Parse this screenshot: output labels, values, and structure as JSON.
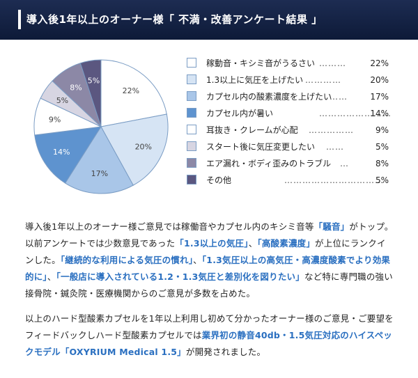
{
  "header": {
    "title": "導入後1年以上のオーナー様「 不満・改善アンケート結果 」"
  },
  "chart_data": {
    "type": "pie",
    "categories": [
      "稼動音・キシミ音がうるさい",
      "1.3以上に気圧を上げたい",
      "カプセル内の酸素濃度を上げたい",
      "カプセル内が暑い",
      "耳抜き・クレームが心配",
      "スタート後に気圧変更したい",
      "エア漏れ・ボディ歪みのトラブル",
      "その他"
    ],
    "values": [
      22,
      20,
      17,
      14,
      9,
      5,
      8,
      5
    ],
    "slice_labels": [
      "22%",
      "20%",
      "17%",
      "14%",
      "9%",
      "5%",
      "8%",
      "5%"
    ],
    "legend_values": [
      "22%",
      "20%",
      "17%",
      "14%",
      "9%",
      "5%",
      "8%",
      "5%"
    ],
    "colors": [
      "#ffffff",
      "#d6e4f4",
      "#a9c6e8",
      "#5e93cf",
      "#ffffff",
      "#d7d5e2",
      "#8c88a6",
      "#5b5780"
    ],
    "legend_placement": "right"
  },
  "legend_dots": [
    "………",
    "…………",
    "……",
    "……………………",
    "……………",
    "……",
    "…",
    "……………………………"
  ],
  "body": {
    "p1": [
      {
        "t": "導入後1年以上のオーナー様ご意見では稼働音やカプセル内のキシミ音等",
        "h": false
      },
      {
        "t": "「騒音」",
        "h": true
      },
      {
        "t": "がトップ。以前アンケートでは少数意見であった",
        "h": false
      },
      {
        "t": "「1.3以上の気圧」",
        "h": true
      },
      {
        "t": "、",
        "h": false
      },
      {
        "t": "「高酸素濃度」",
        "h": true
      },
      {
        "t": "が上位にランクインした。",
        "h": false
      },
      {
        "t": "「継続的な利用による気圧の慣れ」",
        "h": true
      },
      {
        "t": "、",
        "h": false
      },
      {
        "t": "「1.3気圧以上の高気圧・高濃度酸素でより効果的に」",
        "h": true
      },
      {
        "t": "、",
        "h": false
      },
      {
        "t": "「一般店に導入されている1.2・1.3気圧と差別化を図りたい」",
        "h": true
      },
      {
        "t": "など特に専門職の強い接骨院・鍼灸院・医療機関からのご意見が多数を占めた。",
        "h": false
      }
    ],
    "p2": [
      {
        "t": "以上のハード型酸素カプセルを1年以上利用し初めて分かったオーナー様のご意見・ご要望をフィードバックしハード型酸素カプセルでは",
        "h": false
      },
      {
        "t": "業界初の静音40db・1.5気圧対応のハイスペックモデル",
        "h": true
      },
      {
        "t": "「OXYRIUM Medical 1.5」",
        "h": true
      },
      {
        "t": "が開発されました。",
        "h": false
      }
    ]
  }
}
